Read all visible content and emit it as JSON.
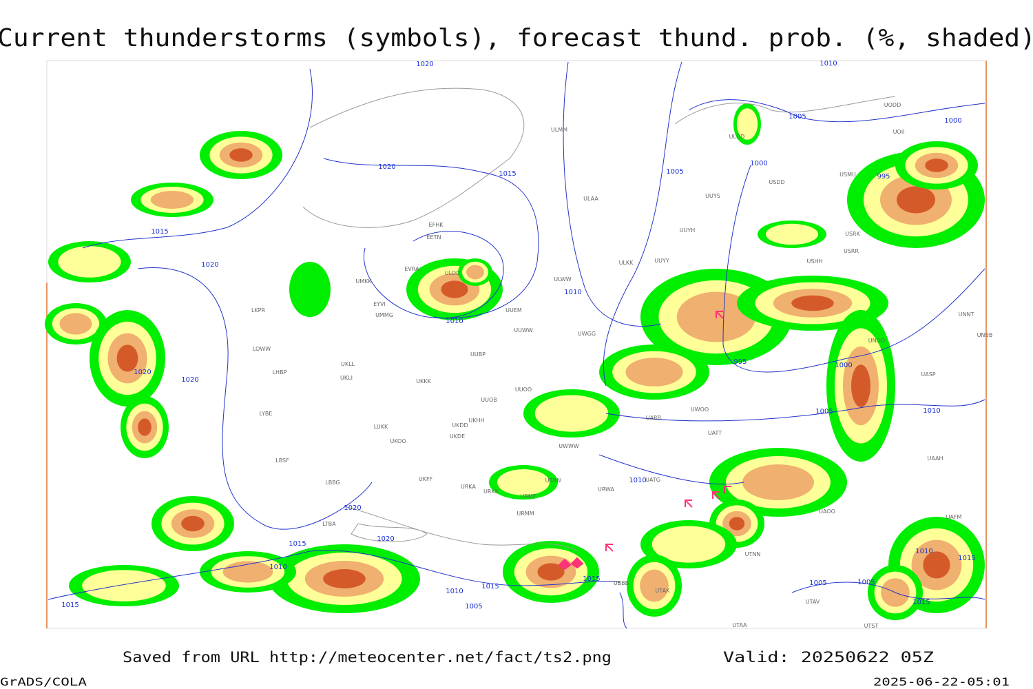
{
  "header": {
    "title": "Current thunderstorms (symbols), forecast thund. prob. (%, shaded)"
  },
  "footer": {
    "source": "Saved from URL http://meteocenter.net/fact/ts2.png",
    "valid": "Valid: 20250622 05Z",
    "software": "GrADS/COLA",
    "timestamp": "2025-06-22-05:01"
  },
  "map": {
    "isobar_labels": [
      "1020",
      "1020",
      "1015",
      "1015",
      "1020",
      "1010",
      "1010",
      "1005",
      "1005",
      "1000",
      "1000",
      "995",
      "995",
      "1000",
      "1005",
      "1010",
      "1010",
      "1020",
      "1020",
      "1020",
      "1020",
      "1015",
      "1010",
      "1015",
      "1010",
      "1015",
      "1015",
      "1005",
      "1005",
      "1005",
      "1010",
      "1015",
      "1015",
      "1010"
    ],
    "stations": [
      "ULMM",
      "ULDD",
      "UODD",
      "UOII",
      "USDD",
      "USMU",
      "ULAA",
      "UUYS",
      "UUYH",
      "ULKK",
      "UUYY",
      "ULWW",
      "USRK",
      "USRR",
      "USHH",
      "UMKK",
      "EYVI",
      "UMMG",
      "ULOD",
      "EVRA",
      "EFHK",
      "EETN",
      "LKPR",
      "LOWW",
      "LHBP",
      "LYBE",
      "LBSF",
      "LBBG",
      "LTBA",
      "UKLL",
      "UKLI",
      "UKKK",
      "UUOB",
      "UUOO",
      "UKHH",
      "UKDD",
      "UKDE",
      "UKOO",
      "LUKK",
      "UKFF",
      "URKA",
      "URKK",
      "URMT",
      "URMM",
      "UBBN",
      "UWWW",
      "UATG",
      "URWA",
      "UWGG",
      "UUWW",
      "UUBP",
      "UUEM",
      "UARR",
      "UWOO",
      "UATT",
      "UNNT",
      "UNBB",
      "UNOO",
      "UASP",
      "UAAH",
      "UAOO",
      "UAFM",
      "UTAK",
      "UTNN",
      "UTAA",
      "UTAV",
      "UTST",
      "UBBB"
    ]
  }
}
